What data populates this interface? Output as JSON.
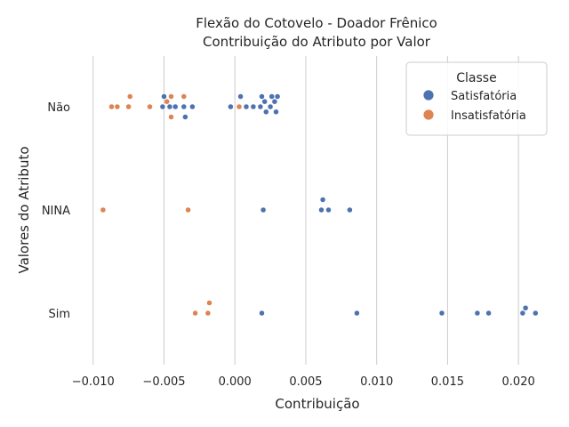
{
  "chart_data": {
    "type": "scatter",
    "subtype": "swarm",
    "title": "Flexão do Cotovelo - Doador Frênico",
    "subtitle": "Contribuição do Atributo por Valor",
    "xlabel": "Contribuição",
    "ylabel": "Valores do Atributo",
    "xlim": [
      -0.0108,
      0.0225
    ],
    "xticks": [
      -0.01,
      -0.005,
      0.0,
      0.005,
      0.01,
      0.015,
      0.02
    ],
    "xtick_labels": [
      "−0.010",
      "−0.005",
      "0.000",
      "0.005",
      "0.010",
      "0.015",
      "0.020"
    ],
    "categories": [
      "Não",
      "NINA",
      "Sim"
    ],
    "grid": "vertical",
    "legend": {
      "title": "Classe",
      "placement": "top-right"
    },
    "series": [
      {
        "name": "Satisfatória",
        "color": "#4c72b0",
        "points": {
          "Não": [
            -0.0051,
            -0.005,
            -0.0046,
            -0.0042,
            -0.0036,
            -0.0035,
            -0.003,
            -0.0003,
            0.0004,
            0.0008,
            0.0013,
            0.0018,
            0.0019,
            0.0021,
            0.0022,
            0.0025,
            0.0026,
            0.0028,
            0.0029,
            0.003
          ],
          "NINA": [
            0.002,
            0.0061,
            0.0062,
            0.0066,
            0.0081
          ],
          "Sim": [
            0.0019,
            0.0086,
            0.0146,
            0.0171,
            0.0179,
            0.0203,
            0.0205,
            0.0212
          ]
        }
      },
      {
        "name": "Insatisfatória",
        "color": "#dd8452",
        "points": {
          "Não": [
            -0.0087,
            -0.0083,
            -0.0075,
            -0.0074,
            -0.006,
            -0.0048,
            -0.0045,
            -0.0045,
            -0.0036,
            0.0003
          ],
          "NINA": [
            -0.0093,
            -0.0033
          ],
          "Sim": [
            -0.0028,
            -0.0019,
            -0.0018
          ]
        }
      }
    ]
  }
}
